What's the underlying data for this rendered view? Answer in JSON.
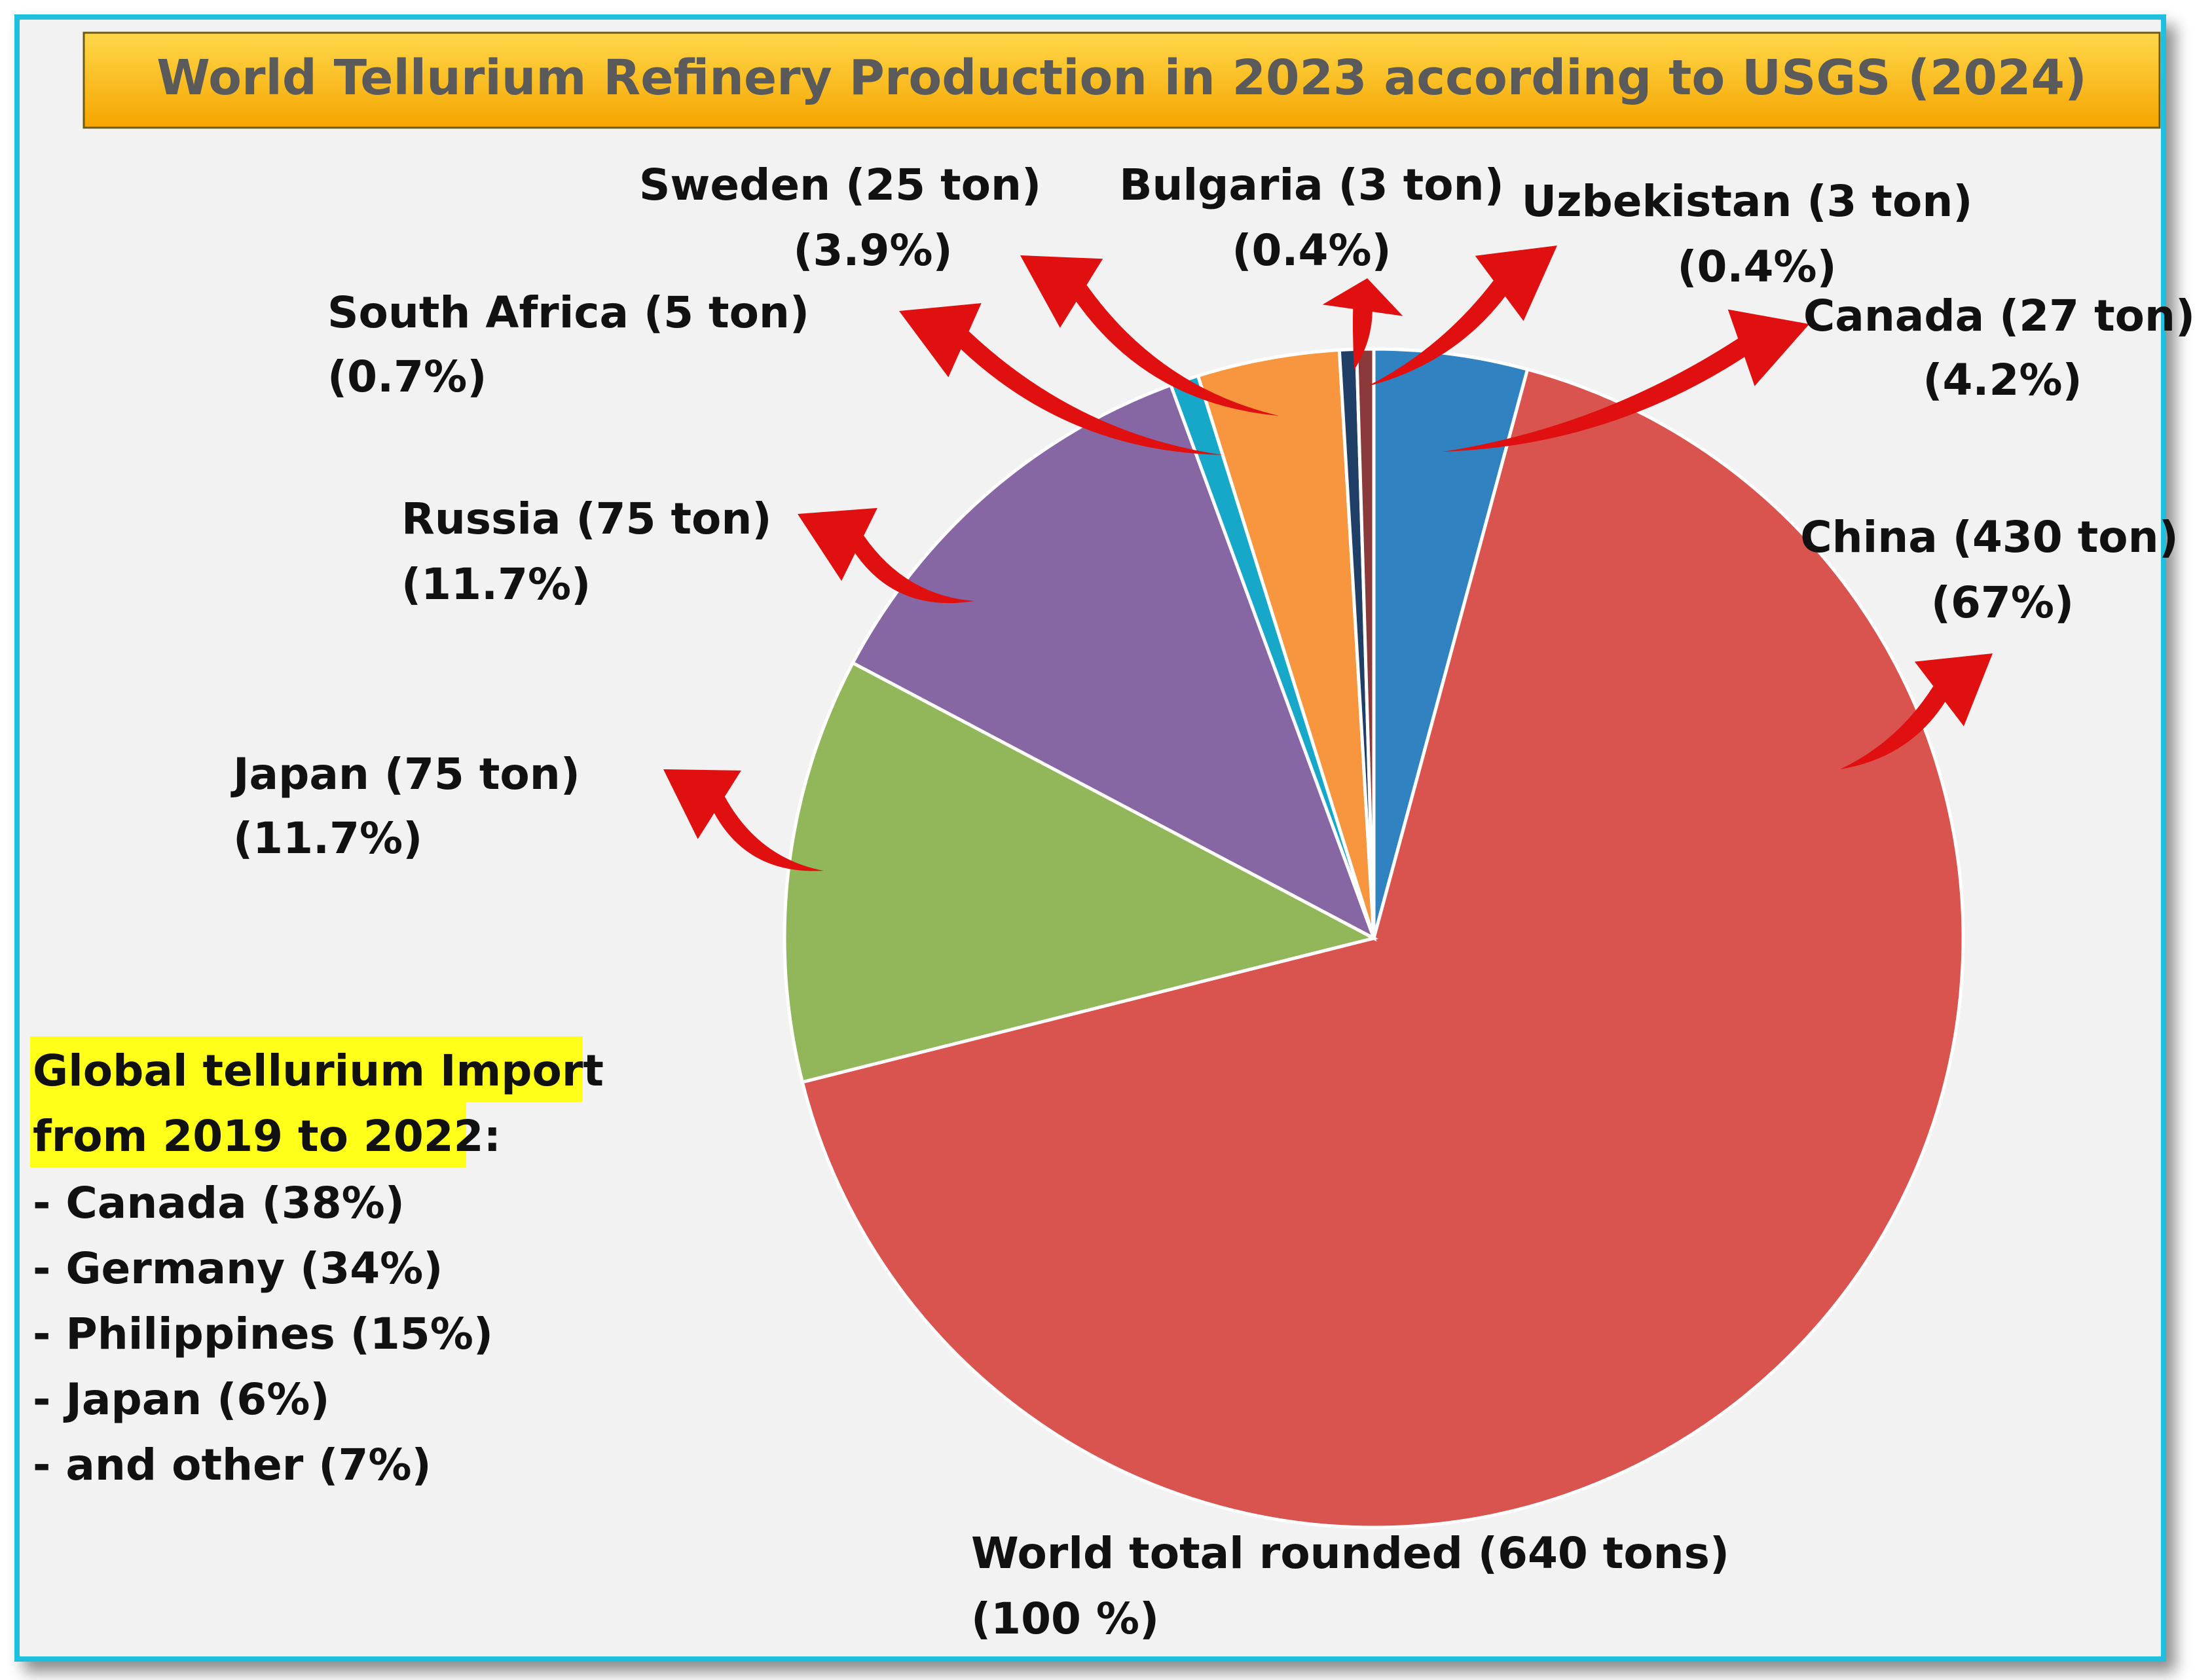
{
  "chart_data": {
    "type": "pie",
    "title": "World Tellurium Refinery Production in 2023 according to USGS (2024)",
    "unit": "ton",
    "slices": [
      {
        "name": "Canada",
        "value": 27,
        "label_line1": "Canada (27 ton)",
        "label_line2": "(4.2%)",
        "color": "#3182c1"
      },
      {
        "name": "China",
        "value": 430,
        "label_line1": "China (430 ton)",
        "label_line2": "(67%)",
        "color": "#d9534f"
      },
      {
        "name": "Japan",
        "value": 75,
        "label_line1": "Japan (75 ton)",
        "label_line2": "(11.7%)",
        "color": "#92b75a"
      },
      {
        "name": "Russia",
        "value": 75,
        "label_line1": "Russia (75 ton)",
        "label_line2": "(11.7%)",
        "color": "#8767a3"
      },
      {
        "name": "South Africa",
        "value": 5,
        "label_line1": "South Africa (5 ton)",
        "label_line2": "(0.7%)",
        "color": "#16a7c9"
      },
      {
        "name": "Sweden",
        "value": 25,
        "label_line1": "Sweden (25 ton)",
        "label_line2": "(3.9%)",
        "color": "#f7963f"
      },
      {
        "name": "Bulgaria",
        "value": 3,
        "label_line1": "Bulgaria (3 ton)",
        "label_line2": "(0.4%)",
        "color": "#1f3f66"
      },
      {
        "name": "Uzbekistan",
        "value": 3,
        "label_line1": "Uzbekistan (3 ton)",
        "label_line2": "(0.4%)",
        "color": "#8a3a3a"
      }
    ],
    "total_label_line1": "World total rounded (640 tons)",
    "total_label_line2": "(100 %)"
  },
  "note": {
    "heading_line1": "Global tellurium Import",
    "heading_line2": "from 2019 to 2022:",
    "items": [
      "- Canada (38%)",
      "- Germany (34%)",
      "- Philippines (15%)",
      "- Japan (6%)",
      "- and other (7%)"
    ]
  },
  "colors": {
    "frame": "#1fbfe0",
    "title_bar_top": "#ffd84a",
    "title_bar_bottom": "#f5a500",
    "arrow": "#e01010",
    "note_highlight": "#ffff1a"
  }
}
